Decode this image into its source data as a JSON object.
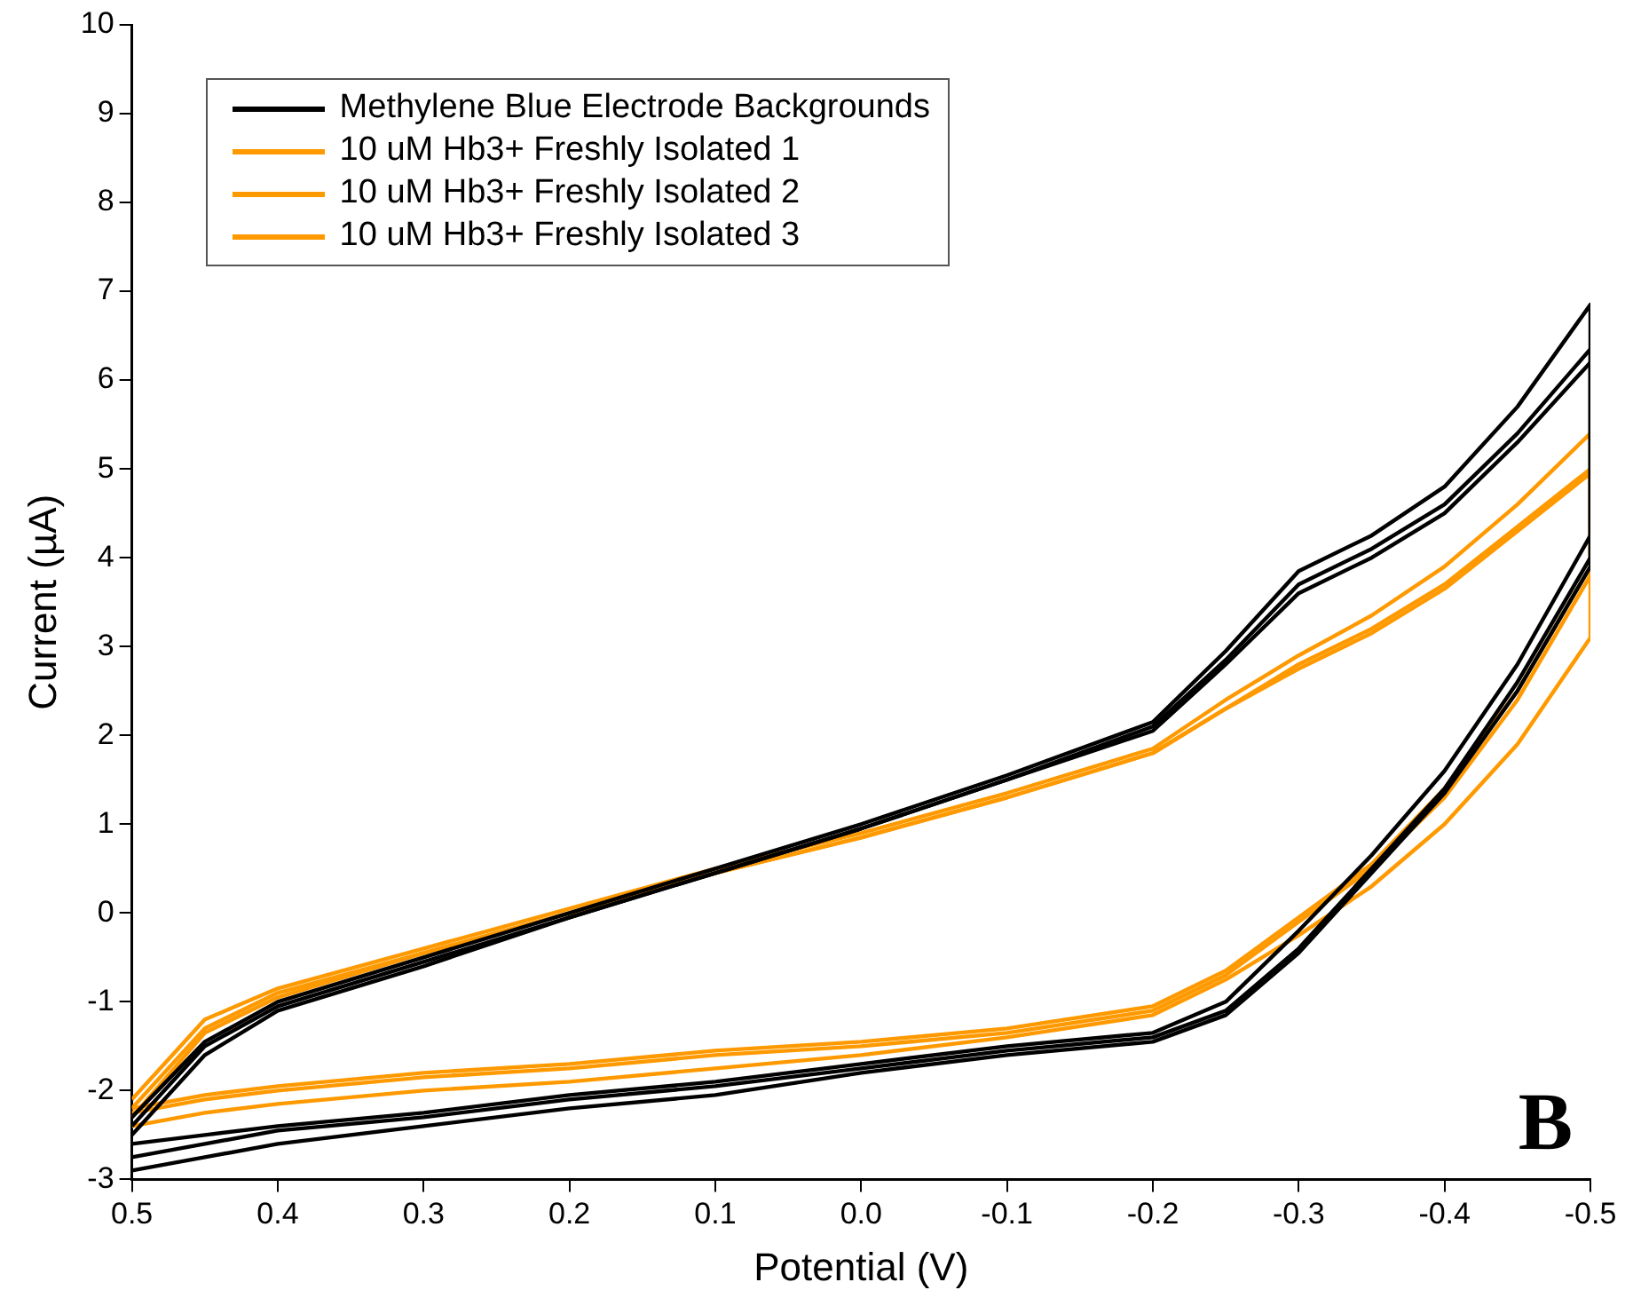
{
  "chart_data": {
    "type": "line",
    "xlabel": "Potential (V)",
    "ylabel": "Current (µA)",
    "xlim": [
      0.5,
      -0.5
    ],
    "xticks": [
      0.5,
      0.4,
      0.3,
      0.2,
      0.1,
      {
        "value": 0,
        "label": "0.0"
      },
      -0.1,
      -0.2,
      -0.3,
      -0.4,
      -0.5
    ],
    "ylim": [
      -3,
      10
    ],
    "yticks": [
      -3,
      -2,
      -1,
      0,
      1,
      2,
      3,
      4,
      5,
      6,
      7,
      8,
      9,
      10
    ],
    "grid": false,
    "legend": "top left",
    "marker": "none",
    "line_style": "solid",
    "annotations": [
      "B"
    ],
    "series": [
      {
        "name": "Methylene Blue Electrode Backgrounds",
        "color": "#000000",
        "x": [
          0.5,
          0.45,
          0.4,
          0.3,
          0.2,
          0.1,
          0,
          -0.1,
          -0.2,
          -0.25,
          -0.3,
          -0.35,
          -0.4,
          -0.45,
          -0.5,
          -0.5,
          -0.45,
          -0.4,
          -0.35,
          -0.3,
          -0.25,
          -0.2,
          -0.1,
          0,
          0.1,
          0.2,
          0.3,
          0.4,
          0.45,
          0.5
        ],
        "values": [
          -2.3,
          -1.45,
          -1.0,
          -0.5,
          0.0,
          0.5,
          1.0,
          1.55,
          2.15,
          2.95,
          3.85,
          4.25,
          4.8,
          5.7,
          6.85,
          4.25,
          2.8,
          1.6,
          0.65,
          -0.2,
          -1.0,
          -1.35,
          -1.5,
          -1.7,
          -1.9,
          -2.05,
          -2.25,
          -2.4,
          -2.5,
          -2.6
        ]
      },
      {
        "color": "#000000",
        "x": [
          0.5,
          0.45,
          0.4,
          0.3,
          0.2,
          0.1,
          0,
          -0.1,
          -0.2,
          -0.25,
          -0.3,
          -0.35,
          -0.4,
          -0.45,
          -0.5,
          -0.5,
          -0.45,
          -0.4,
          -0.35,
          -0.3,
          -0.25,
          -0.2,
          -0.1,
          0,
          0.1,
          0.2,
          0.3,
          0.4,
          0.45,
          0.5
        ],
        "values": [
          -2.4,
          -1.5,
          -1.05,
          -0.55,
          -0.05,
          0.45,
          0.95,
          1.5,
          2.1,
          2.85,
          3.7,
          4.1,
          4.6,
          5.4,
          6.35,
          4.0,
          2.6,
          1.4,
          0.5,
          -0.4,
          -1.1,
          -1.4,
          -1.55,
          -1.75,
          -1.95,
          -2.1,
          -2.3,
          -2.45,
          -2.6,
          -2.75
        ]
      },
      {
        "color": "#000000",
        "x": [
          0.5,
          0.45,
          0.4,
          0.3,
          0.2,
          0.1,
          0,
          -0.1,
          -0.2,
          -0.25,
          -0.3,
          -0.35,
          -0.4,
          -0.45,
          -0.5,
          -0.5,
          -0.45,
          -0.4,
          -0.35,
          -0.3,
          -0.25,
          -0.2,
          -0.1,
          0,
          0.1,
          0.2,
          0.3,
          0.4,
          0.45,
          0.5
        ],
        "values": [
          -2.5,
          -1.6,
          -1.1,
          -0.6,
          -0.05,
          0.45,
          0.95,
          1.5,
          2.05,
          2.8,
          3.6,
          4.0,
          4.5,
          5.3,
          6.2,
          3.9,
          2.5,
          1.35,
          0.45,
          -0.45,
          -1.15,
          -1.45,
          -1.6,
          -1.8,
          -2.05,
          -2.2,
          -2.4,
          -2.6,
          -2.75,
          -2.9
        ]
      },
      {
        "name": "10 uM Hb3+ Freshly Isolated 1",
        "color": "#ff9900",
        "x": [
          0.5,
          0.45,
          0.4,
          0.3,
          0.2,
          0.1,
          0,
          -0.1,
          -0.2,
          -0.25,
          -0.3,
          -0.35,
          -0.4,
          -0.45,
          -0.5,
          -0.5,
          -0.45,
          -0.4,
          -0.35,
          -0.3,
          -0.25,
          -0.2,
          -0.1,
          0,
          0.1,
          0.2,
          0.3,
          0.4,
          0.45,
          0.5
        ],
        "values": [
          -2.1,
          -1.2,
          -0.85,
          -0.4,
          0.05,
          0.5,
          0.9,
          1.35,
          1.85,
          2.4,
          2.9,
          3.35,
          3.9,
          4.6,
          5.4,
          3.9,
          2.5,
          1.4,
          0.55,
          -0.05,
          -0.65,
          -1.05,
          -1.3,
          -1.45,
          -1.55,
          -1.7,
          -1.8,
          -1.95,
          -2.05,
          -2.2
        ]
      },
      {
        "name": "10 uM Hb3+ Freshly Isolated 2",
        "color": "#ff9900",
        "x": [
          0.5,
          0.45,
          0.4,
          0.3,
          0.2,
          0.1,
          0,
          -0.1,
          -0.2,
          -0.25,
          -0.3,
          -0.35,
          -0.4,
          -0.45,
          -0.5,
          -0.5,
          -0.45,
          -0.4,
          -0.35,
          -0.3,
          -0.25,
          -0.2,
          -0.1,
          0,
          0.1,
          0.2,
          0.3,
          0.4,
          0.45,
          0.5
        ],
        "values": [
          -2.2,
          -1.3,
          -0.9,
          -0.45,
          0.0,
          0.45,
          0.85,
          1.3,
          1.8,
          2.3,
          2.8,
          3.2,
          3.7,
          4.35,
          5.0,
          3.8,
          2.4,
          1.3,
          0.5,
          -0.1,
          -0.7,
          -1.1,
          -1.35,
          -1.5,
          -1.6,
          -1.75,
          -1.85,
          -2.0,
          -2.1,
          -2.25
        ]
      },
      {
        "name": "10 uM Hb3+ Freshly Isolated 3",
        "color": "#ff9900",
        "x": [
          0.5,
          0.45,
          0.4,
          0.3,
          0.2,
          0.1,
          0,
          -0.1,
          -0.2,
          -0.25,
          -0.3,
          -0.35,
          -0.4,
          -0.45,
          -0.5,
          -0.5,
          -0.45,
          -0.4,
          -0.35,
          -0.3,
          -0.25,
          -0.2,
          -0.1,
          0,
          0.1,
          0.2,
          0.3,
          0.4,
          0.45,
          0.5
        ],
        "values": [
          -2.3,
          -1.35,
          -0.95,
          -0.45,
          0.0,
          0.45,
          0.85,
          1.3,
          1.8,
          2.3,
          2.75,
          3.15,
          3.65,
          4.3,
          4.95,
          3.1,
          1.9,
          1.0,
          0.3,
          -0.25,
          -0.75,
          -1.15,
          -1.4,
          -1.6,
          -1.75,
          -1.9,
          -2.0,
          -2.15,
          -2.25,
          -2.4
        ]
      }
    ]
  }
}
